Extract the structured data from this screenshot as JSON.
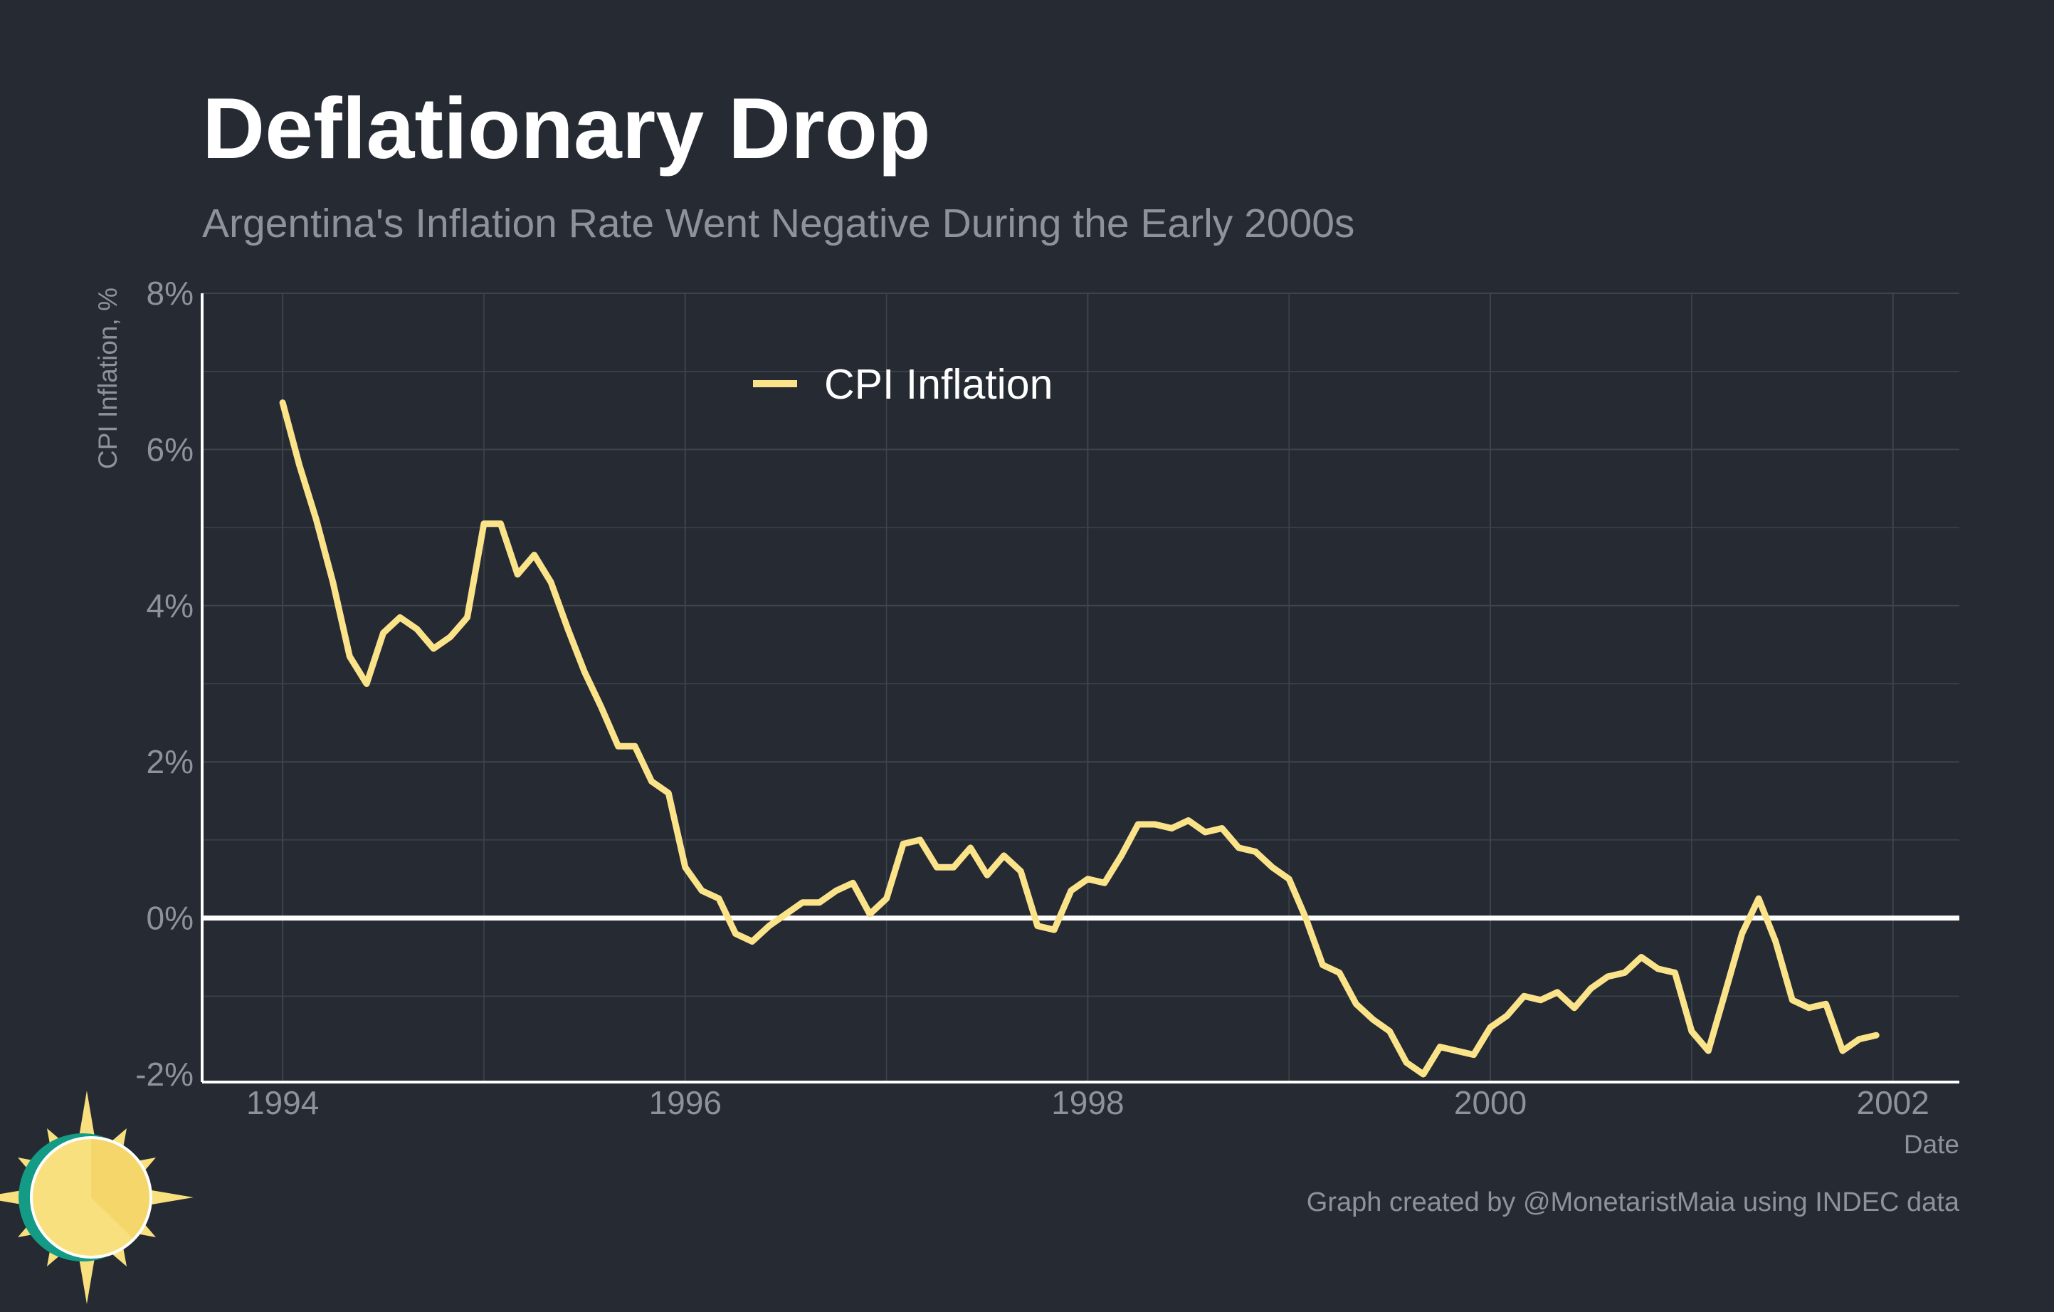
{
  "colors": {
    "background": "#252a33",
    "line": "#fbe38a",
    "grid": "#3f444c",
    "axis": "#ffffff",
    "zero_line": "#ffffff",
    "muted_text": "#8e939b",
    "title_text": "#ffffff",
    "logo_sun": "#f9e07e",
    "logo_rim": "#139b85"
  },
  "logo": {
    "icon": "sun-logo-icon"
  },
  "chart_data": {
    "type": "line",
    "title": "Deflationary Drop",
    "subtitle": "Argentina's Inflation Rate Went Negative During the Early 2000s",
    "xlabel": "Date",
    "ylabel": "CPI Inflation, %",
    "caption": "Graph created by @MonetaristMaia using INDEC data",
    "x_ticks": [
      "1994",
      "1996",
      "1998",
      "2000",
      "2002"
    ],
    "y_ticks": [
      "8%",
      "6%",
      "4%",
      "2%",
      "0%",
      "-2%"
    ],
    "xlim": [
      1993.6,
      2002.33
    ],
    "ylim": [
      -2.1,
      8
    ],
    "grid": true,
    "reference_line_y": 0,
    "legend": {
      "position": "top-center",
      "entries": [
        "CPI Inflation"
      ]
    },
    "series": [
      {
        "name": "CPI Inflation",
        "x": [
          1994.0,
          1994.083,
          1994.167,
          1994.25,
          1994.333,
          1994.417,
          1994.5,
          1994.583,
          1994.667,
          1994.75,
          1994.833,
          1994.917,
          1995.0,
          1995.083,
          1995.167,
          1995.25,
          1995.333,
          1995.417,
          1995.5,
          1995.583,
          1995.667,
          1995.75,
          1995.833,
          1995.917,
          1996.0,
          1996.083,
          1996.167,
          1996.25,
          1996.333,
          1996.417,
          1996.5,
          1996.583,
          1996.667,
          1996.75,
          1996.833,
          1996.917,
          1997.0,
          1997.083,
          1997.167,
          1997.25,
          1997.333,
          1997.417,
          1997.5,
          1997.583,
          1997.667,
          1997.75,
          1997.833,
          1997.917,
          1998.0,
          1998.083,
          1998.167,
          1998.25,
          1998.333,
          1998.417,
          1998.5,
          1998.583,
          1998.667,
          1998.75,
          1998.833,
          1998.917,
          1999.0,
          1999.083,
          1999.167,
          1999.25,
          1999.333,
          1999.417,
          1999.5,
          1999.583,
          1999.667,
          1999.75,
          1999.833,
          1999.917,
          2000.0,
          2000.083,
          2000.167,
          2000.25,
          2000.333,
          2000.417,
          2000.5,
          2000.583,
          2000.667,
          2000.75,
          2000.833,
          2000.917,
          2001.0,
          2001.083,
          2001.167,
          2001.25,
          2001.333,
          2001.417,
          2001.5,
          2001.583,
          2001.667,
          2001.75,
          2001.833,
          2001.917
        ],
        "values": [
          6.6,
          5.8,
          5.1,
          4.3,
          3.35,
          3.0,
          3.65,
          3.85,
          3.7,
          3.45,
          3.6,
          3.85,
          5.05,
          5.05,
          4.4,
          4.65,
          4.3,
          3.7,
          3.15,
          2.7,
          2.2,
          2.2,
          1.75,
          1.6,
          0.65,
          0.35,
          0.25,
          -0.2,
          -0.3,
          -0.1,
          0.05,
          0.2,
          0.2,
          0.35,
          0.45,
          0.05,
          0.25,
          0.95,
          1.0,
          0.65,
          0.65,
          0.9,
          0.55,
          0.8,
          0.6,
          -0.1,
          -0.15,
          0.35,
          0.5,
          0.45,
          0.8,
          1.2,
          1.2,
          1.15,
          1.25,
          1.1,
          1.15,
          0.9,
          0.85,
          0.65,
          0.5,
          0.0,
          -0.6,
          -0.7,
          -1.1,
          -1.3,
          -1.45,
          -1.85,
          -2.0,
          -1.65,
          -1.7,
          -1.75,
          -1.4,
          -1.25,
          -1.0,
          -1.05,
          -0.95,
          -1.15,
          -0.9,
          -0.75,
          -0.7,
          -0.5,
          -0.65,
          -0.7,
          -1.45,
          -1.7,
          -0.95,
          -0.2,
          0.25,
          -0.3,
          -1.05,
          -1.15,
          -1.1,
          -1.7,
          -1.55,
          -1.5
        ]
      }
    ]
  }
}
